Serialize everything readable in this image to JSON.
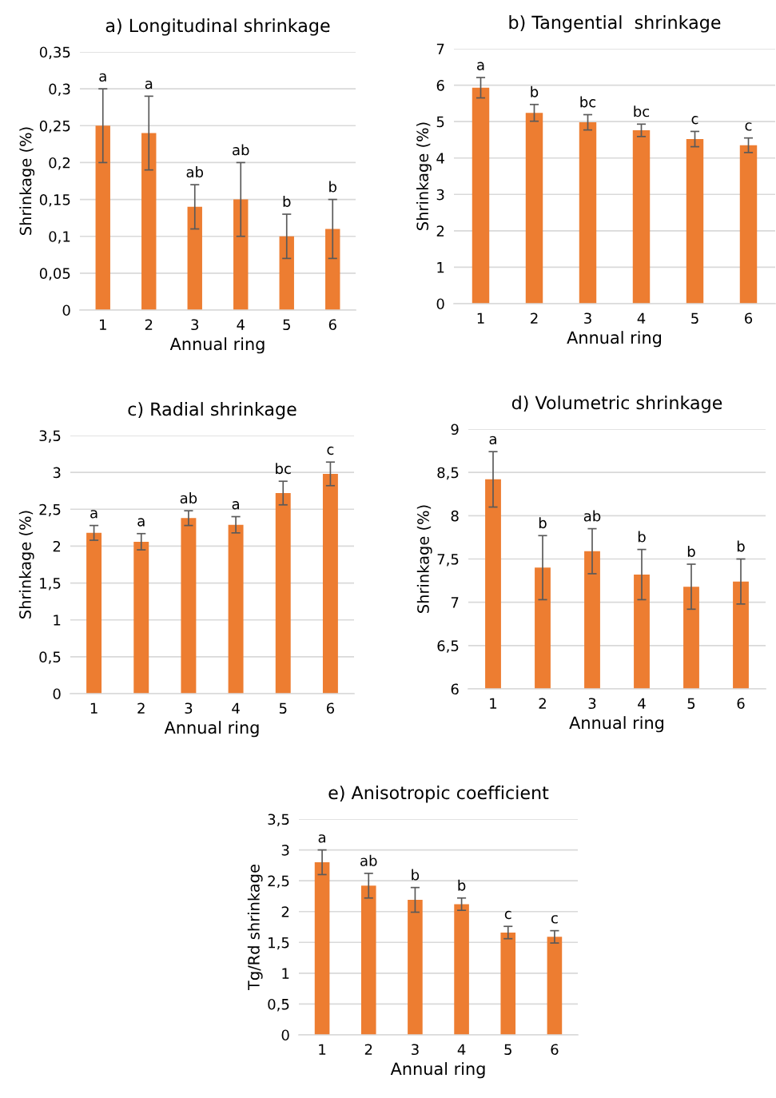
{
  "chart_data": [
    {
      "type": "bar",
      "title": "a) Longitudinal shrinkage",
      "xlabel": "Annual ring",
      "ylabel": "Shrinkage (%)",
      "categories": [
        "1",
        "2",
        "3",
        "4",
        "5",
        "6"
      ],
      "color": "#ed7d31",
      "values": [
        0.25,
        0.24,
        0.14,
        0.15,
        0.1,
        0.11
      ],
      "errors": [
        0.05,
        0.05,
        [
          0.11,
          0.17
        ],
        [
          0.1,
          0.2
        ],
        [
          0.07,
          0.13
        ],
        [
          0.07,
          0.15
        ]
      ],
      "ylim": [
        0,
        0.35
      ],
      "yticks": [
        0,
        {
          "value": 0.05,
          "label": "0,05"
        },
        {
          "value": 0.1,
          "label": "0,1"
        },
        {
          "value": 0.15,
          "label": "0,15"
        },
        {
          "value": 0.2,
          "label": "0,2"
        },
        {
          "value": 0.25,
          "label": "0,25"
        },
        {
          "value": 0.3,
          "label": "0,3"
        },
        {
          "value": 0.35,
          "label": "0,35"
        }
      ],
      "grid": "y",
      "annotations": [
        {
          "text": "a",
          "x": "1",
          "y": 0.3
        },
        {
          "text": "a",
          "x": "2",
          "y": 0.29
        },
        {
          "text": "ab",
          "x": "3",
          "y": 0.17
        },
        {
          "text": "ab",
          "x": "4",
          "y": 0.2
        },
        {
          "text": "b",
          "x": "5",
          "y": 0.13
        },
        {
          "text": "b",
          "x": "6",
          "y": 0.15
        }
      ]
    },
    {
      "type": "bar",
      "title": "b) Tangential  shrinkage",
      "xlabel": "Annual ring",
      "ylabel": "Shrinkage (%)",
      "categories": [
        "1",
        "2",
        "3",
        "4",
        "5",
        "6"
      ],
      "color": "#ed7d31",
      "values": [
        5.93,
        5.24,
        4.98,
        4.76,
        4.52,
        4.35
      ],
      "errors": [
        0.28,
        0.23,
        0.21,
        0.17,
        0.21,
        0.2
      ],
      "ylim": [
        0,
        7
      ],
      "yticks": [
        0,
        1,
        2,
        3,
        4,
        5,
        6,
        7
      ],
      "grid": "y",
      "annotations": [
        {
          "text": "a",
          "x": "1",
          "y": 6.21
        },
        {
          "text": "b",
          "x": "2",
          "y": 5.47
        },
        {
          "text": "bc",
          "x": "3",
          "y": 5.19
        },
        {
          "text": "bc",
          "x": "4",
          "y": 4.93
        },
        {
          "text": "c",
          "x": "5",
          "y": 4.73
        },
        {
          "text": "c",
          "x": "6",
          "y": 4.55
        }
      ]
    },
    {
      "type": "bar",
      "title": "c) Radial shrinkage",
      "xlabel": "Annual ring",
      "ylabel": "Shrinkage (%)",
      "categories": [
        "1",
        "2",
        "3",
        "4",
        "5",
        "6"
      ],
      "color": "#ed7d31",
      "values": [
        2.18,
        2.06,
        2.38,
        2.29,
        2.72,
        2.98
      ],
      "errors": [
        0.1,
        0.11,
        0.1,
        0.11,
        0.16,
        0.16
      ],
      "ylim": [
        0,
        3.5
      ],
      "yticks": [
        0,
        {
          "value": 0.5,
          "label": "0,5"
        },
        1,
        {
          "value": 1.5,
          "label": "1,5"
        },
        2,
        {
          "value": 2.5,
          "label": "2,5"
        },
        3,
        {
          "value": 3.5,
          "label": "3,5"
        }
      ],
      "grid": "y",
      "annotations": [
        {
          "text": "a",
          "x": "1",
          "y": 2.28
        },
        {
          "text": "a",
          "x": "2",
          "y": 2.17
        },
        {
          "text": "ab",
          "x": "3",
          "y": 2.48
        },
        {
          "text": "a",
          "x": "4",
          "y": 2.4
        },
        {
          "text": "bc",
          "x": "5",
          "y": 2.88
        },
        {
          "text": "c",
          "x": "6",
          "y": 3.14
        }
      ]
    },
    {
      "type": "bar",
      "title": "d) Volumetric shrinkage",
      "xlabel": "Annual ring",
      "ylabel": "Shrinkage (%)",
      "categories": [
        "1",
        "2",
        "3",
        "4",
        "5",
        "6"
      ],
      "color": "#ed7d31",
      "values": [
        8.42,
        7.4,
        7.59,
        7.32,
        7.18,
        7.24
      ],
      "errors": [
        0.32,
        0.37,
        0.26,
        0.29,
        0.26,
        0.26
      ],
      "ylim": [
        6,
        9
      ],
      "yticks": [
        6,
        {
          "value": 6.5,
          "label": "6,5"
        },
        7,
        {
          "value": 7.5,
          "label": "7,5"
        },
        8,
        {
          "value": 8.5,
          "label": "8,5"
        },
        9
      ],
      "grid": "y",
      "annotations": [
        {
          "text": "a",
          "x": "1",
          "y": 8.74
        },
        {
          "text": "b",
          "x": "2",
          "y": 7.77
        },
        {
          "text": "ab",
          "x": "3",
          "y": 7.85
        },
        {
          "text": "b",
          "x": "4",
          "y": 7.61
        },
        {
          "text": "b",
          "x": "5",
          "y": 7.44
        },
        {
          "text": "b",
          "x": "6",
          "y": 7.5
        }
      ]
    },
    {
      "type": "bar",
      "title": "e) Anisotropic coefficient",
      "xlabel": "Annual ring",
      "ylabel": "Tg/Rd shrinkage",
      "categories": [
        "1",
        "2",
        "3",
        "4",
        "5",
        "6"
      ],
      "color": "#ed7d31",
      "values": [
        2.8,
        2.42,
        2.19,
        2.12,
        1.66,
        1.59
      ],
      "errors": [
        0.2,
        0.2,
        0.2,
        0.1,
        0.1,
        0.1
      ],
      "ylim": [
        0,
        3.5
      ],
      "yticks": [
        0,
        {
          "value": 0.5,
          "label": "0,5"
        },
        1,
        {
          "value": 1.5,
          "label": "1,5"
        },
        2,
        {
          "value": 2.5,
          "label": "2,5"
        },
        3,
        {
          "value": 3.5,
          "label": "3,5"
        }
      ],
      "grid": "y",
      "annotations": [
        {
          "text": "a",
          "x": "1",
          "y": 3.0
        },
        {
          "text": "ab",
          "x": "2",
          "y": 2.62
        },
        {
          "text": "b",
          "x": "3",
          "y": 2.39
        },
        {
          "text": "b",
          "x": "4",
          "y": 2.22
        },
        {
          "text": "c",
          "x": "5",
          "y": 1.76
        },
        {
          "text": "c",
          "x": "6",
          "y": 1.69
        }
      ]
    }
  ]
}
